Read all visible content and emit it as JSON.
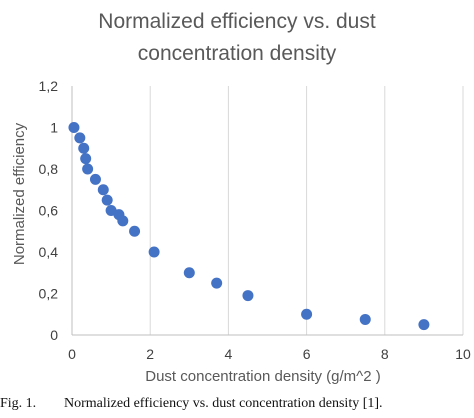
{
  "chart_data": {
    "type": "scatter",
    "title_lines": [
      "Normalized efficiency vs. dust",
      "concentration density"
    ],
    "xlabel": "Dust concentration density (g/m^2 )",
    "ylabel": "Normalized efficiency",
    "xlim": [
      0,
      10
    ],
    "ylim": [
      0,
      1.2
    ],
    "xticks": [
      0,
      2,
      4,
      6,
      8,
      10
    ],
    "xtick_labels": [
      "0",
      "2",
      "4",
      "6",
      "8",
      "10"
    ],
    "yticks": [
      0,
      0.2,
      0.4,
      0.6,
      0.8,
      1.0,
      1.2
    ],
    "ytick_labels": [
      "0",
      "0,2",
      "0,4",
      "0,6",
      "0,8",
      "1",
      "1,2"
    ],
    "grid": "vertical",
    "series": [
      {
        "color": "#4472C4",
        "points": [
          [
            0.05,
            1.0
          ],
          [
            0.2,
            0.95
          ],
          [
            0.3,
            0.9
          ],
          [
            0.35,
            0.85
          ],
          [
            0.4,
            0.8
          ],
          [
            0.6,
            0.75
          ],
          [
            0.8,
            0.7
          ],
          [
            0.9,
            0.65
          ],
          [
            1.0,
            0.6
          ],
          [
            1.2,
            0.58
          ],
          [
            1.3,
            0.55
          ],
          [
            1.6,
            0.5
          ],
          [
            2.1,
            0.4
          ],
          [
            3.0,
            0.3
          ],
          [
            3.7,
            0.25
          ],
          [
            4.5,
            0.19
          ],
          [
            6.0,
            0.1
          ],
          [
            7.5,
            0.075
          ],
          [
            9.0,
            0.05
          ]
        ]
      }
    ]
  },
  "caption": {
    "number": "Fig. 1.",
    "text": "Normalized efficiency vs. dust concentration density [1]."
  }
}
